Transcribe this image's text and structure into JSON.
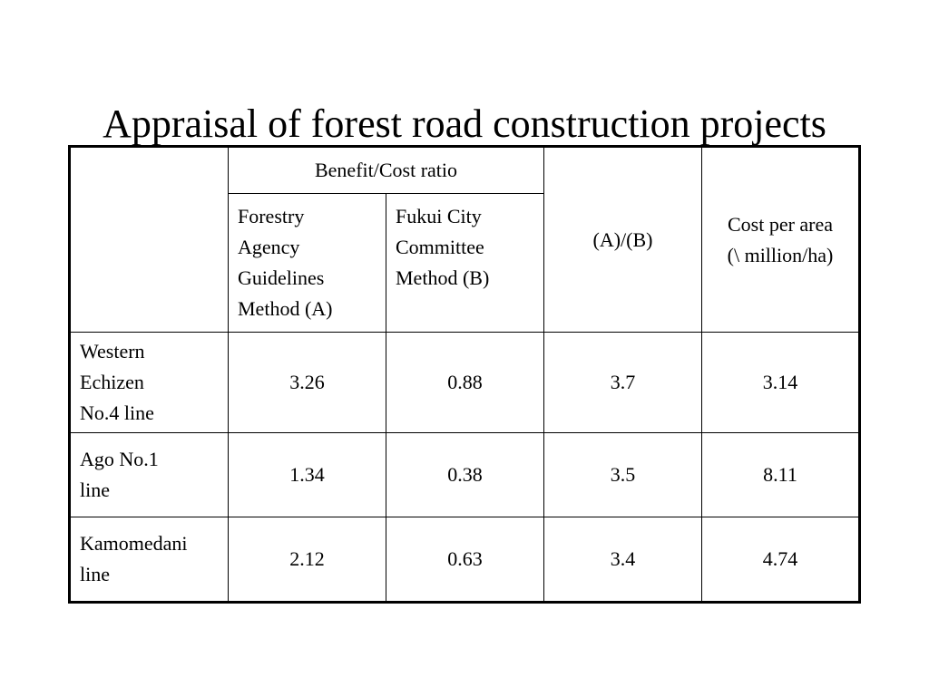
{
  "title": "Appraisal of forest road construction projects",
  "table": {
    "header": {
      "group_label": "Benefit/Cost ratio",
      "col_a": [
        "Forestry",
        "Agency",
        "Guidelines",
        "Method (A)"
      ],
      "col_b": [
        "Fukui City",
        "Committee",
        "Method (B)"
      ],
      "col_ratio": "(A)/(B)",
      "col_cost": [
        "Cost per area",
        "(\\ million/ha)"
      ]
    },
    "rows": [
      {
        "name": [
          "Western",
          "Echizen",
          "No.4 line"
        ],
        "a": "3.26",
        "b": "0.88",
        "ratio": "3.7",
        "cost": "3.14"
      },
      {
        "name": [
          "Ago No.1",
          "line"
        ],
        "a": "1.34",
        "b": "0.38",
        "ratio": "3.5",
        "cost": "8.11"
      },
      {
        "name": [
          "Kamomedani",
          "line"
        ],
        "a": "2.12",
        "b": "0.63",
        "ratio": "3.4",
        "cost": "4.74"
      }
    ]
  }
}
